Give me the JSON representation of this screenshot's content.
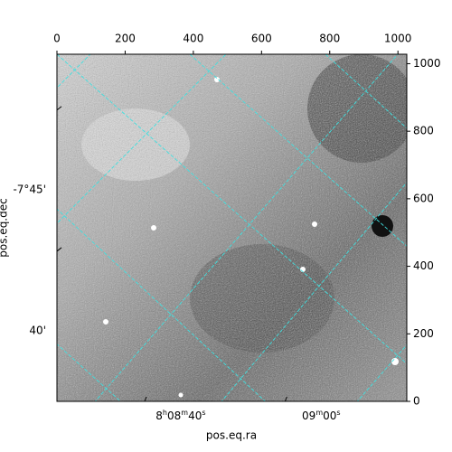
{
  "chart_data": {
    "type": "image",
    "xlabel": "pos.eq.ra",
    "ylabel": "pos.eq.dec",
    "xlim": [
      0,
      1026
    ],
    "ylim": [
      0,
      1028
    ],
    "xticks": [
      0,
      200,
      400,
      600,
      800,
      1000
    ],
    "yticks": [
      0,
      200,
      400,
      600,
      800,
      1000
    ],
    "ra_ticks": [
      {
        "value": 363,
        "label": "8h08m40s"
      },
      {
        "value": 775,
        "label": "09m00s"
      }
    ],
    "dec_ticks": [
      {
        "value": 627,
        "label": "-7°45'"
      },
      {
        "value": 209,
        "label": "40'"
      }
    ],
    "grid_color": "#40e0e0"
  }
}
